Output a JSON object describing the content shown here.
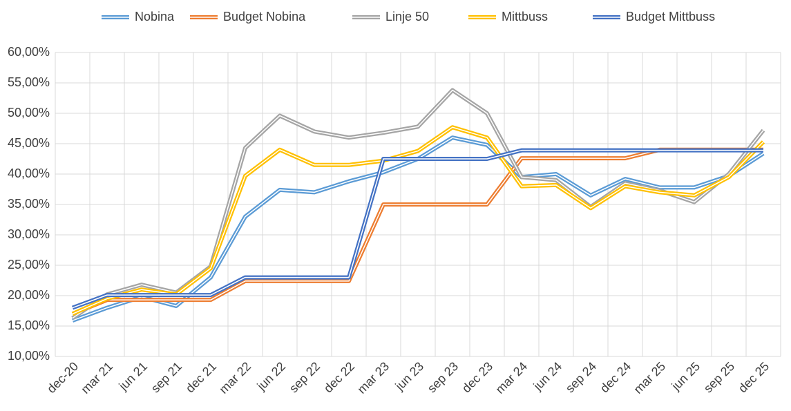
{
  "chart_data": {
    "type": "line",
    "categories": [
      "dec-20",
      "mar 21",
      "jun 21",
      "sep 21",
      "dec 21",
      "mar 22",
      "jun 22",
      "sep 22",
      "dec 22",
      "mar 23",
      "jun 23",
      "sep 23",
      "dec 23",
      "mar 24",
      "jun 24",
      "sep 24",
      "dec 24",
      "mar 25",
      "jun 25",
      "sep 25",
      "dec 25"
    ],
    "series": [
      {
        "name": "Nobina",
        "color": "#5b9bd5",
        "values": [
          15.9,
          18,
          19.8,
          18.3,
          23,
          33,
          37.4,
          37,
          38.8,
          40.3,
          42.5,
          46,
          44.8,
          39.5,
          40,
          36.5,
          39.2,
          37.8,
          37.8,
          39.7,
          43.4
        ]
      },
      {
        "name": "Budget Nobina",
        "color": "#ed7d31",
        "values": [
          17,
          19.3,
          19.3,
          19.3,
          19.3,
          22.4,
          22.4,
          22.4,
          22.4,
          35,
          35,
          35,
          35,
          42.6,
          42.6,
          42.6,
          42.6,
          44,
          44,
          44,
          44
        ]
      },
      {
        "name": "Linje 50",
        "color": "#a5a5a5",
        "values": [
          16.3,
          20.2,
          21.8,
          20.5,
          24.8,
          44.3,
          49.6,
          47,
          46,
          46.8,
          47.8,
          53.8,
          50,
          39.5,
          39,
          34.6,
          38.5,
          37.3,
          35.4,
          40,
          47.2
        ]
      },
      {
        "name": "Mittbuss",
        "color": "#ffc000",
        "values": [
          17,
          19.5,
          21,
          20.2,
          24.5,
          39.7,
          44,
          41.5,
          41.5,
          42.2,
          43.8,
          47.7,
          46,
          38,
          38.2,
          34.4,
          38,
          37,
          36.5,
          39.5,
          45.3
        ]
      },
      {
        "name": "Budget Mittbuss",
        "color": "#4472c4",
        "values": [
          18,
          20.1,
          20.1,
          20.1,
          20.1,
          23,
          23,
          23,
          23,
          42.5,
          42.5,
          42.5,
          42.5,
          43.9,
          43.9,
          43.9,
          43.9,
          43.9,
          43.9,
          43.9,
          43.9
        ]
      }
    ],
    "ylim": [
      10,
      60
    ],
    "yticks": [
      {
        "value": 10,
        "label": "10,00%"
      },
      {
        "value": 15,
        "label": "15,00%"
      },
      {
        "value": 20,
        "label": "20,00%"
      },
      {
        "value": 25,
        "label": "25,00%"
      },
      {
        "value": 30,
        "label": "30,00%"
      },
      {
        "value": 35,
        "label": "35,00%"
      },
      {
        "value": 40,
        "label": "40,00%"
      },
      {
        "value": 45,
        "label": "45,00%"
      },
      {
        "value": 50,
        "label": "50,00%"
      },
      {
        "value": 55,
        "label": "55,00%"
      },
      {
        "value": 60,
        "label": "60,00%"
      }
    ],
    "grid": true,
    "legend": "top"
  }
}
